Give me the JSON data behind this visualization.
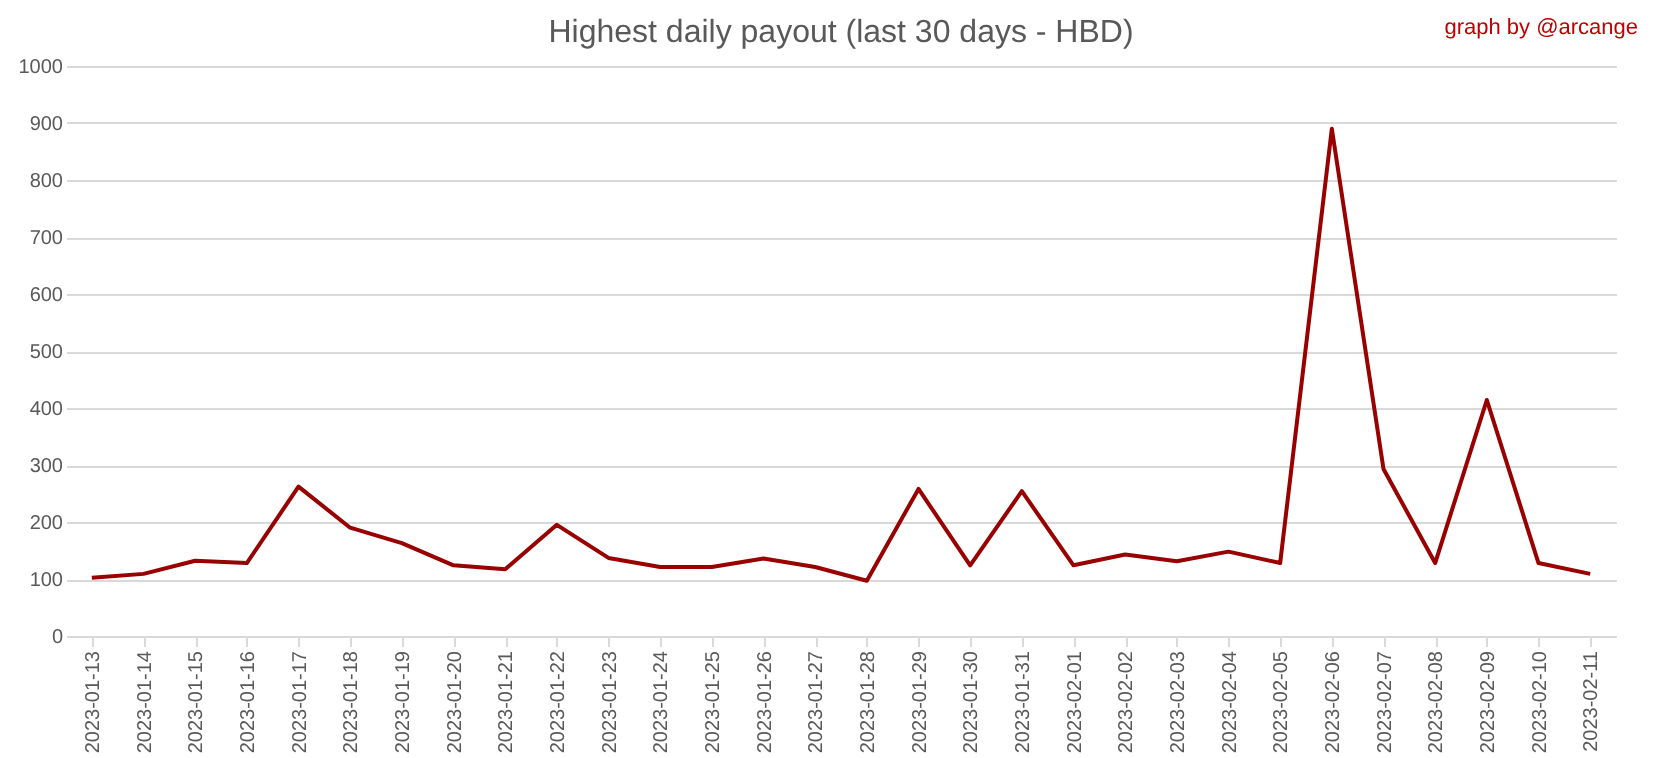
{
  "chart_data": {
    "type": "line",
    "title": "Highest daily payout (last 30 days - HBD)",
    "annotations": [
      "graph by @arcange"
    ],
    "categories": [
      "2023-01-13",
      "2023-01-14",
      "2023-01-15",
      "2023-01-16",
      "2023-01-17",
      "2023-01-18",
      "2023-01-19",
      "2023-01-20",
      "2023-01-21",
      "2023-01-22",
      "2023-01-23",
      "2023-01-24",
      "2023-01-25",
      "2023-01-26",
      "2023-01-27",
      "2023-01-28",
      "2023-01-29",
      "2023-01-30",
      "2023-01-31",
      "2023-02-01",
      "2023-02-02",
      "2023-02-03",
      "2023-02-04",
      "2023-02-05",
      "2023-02-06",
      "2023-02-07",
      "2023-02-08",
      "2023-02-09",
      "2023-02-10",
      "2023-02-11"
    ],
    "series": [
      {
        "color": "#990000",
        "values": [
          102,
          109,
          132,
          128,
          262,
          190,
          163,
          124,
          117,
          195,
          137,
          121,
          121,
          136,
          121,
          97,
          258,
          124,
          254,
          124,
          143,
          131,
          148,
          128,
          890,
          293,
          128,
          414,
          128,
          109
        ]
      }
    ],
    "ylim": [
      0,
      1000
    ],
    "yticks": [
      0,
      100,
      200,
      300,
      400,
      500,
      600,
      700,
      800,
      900,
      1000
    ],
    "grid": "y",
    "legend": false,
    "marker": "none",
    "line_style": "solid"
  }
}
